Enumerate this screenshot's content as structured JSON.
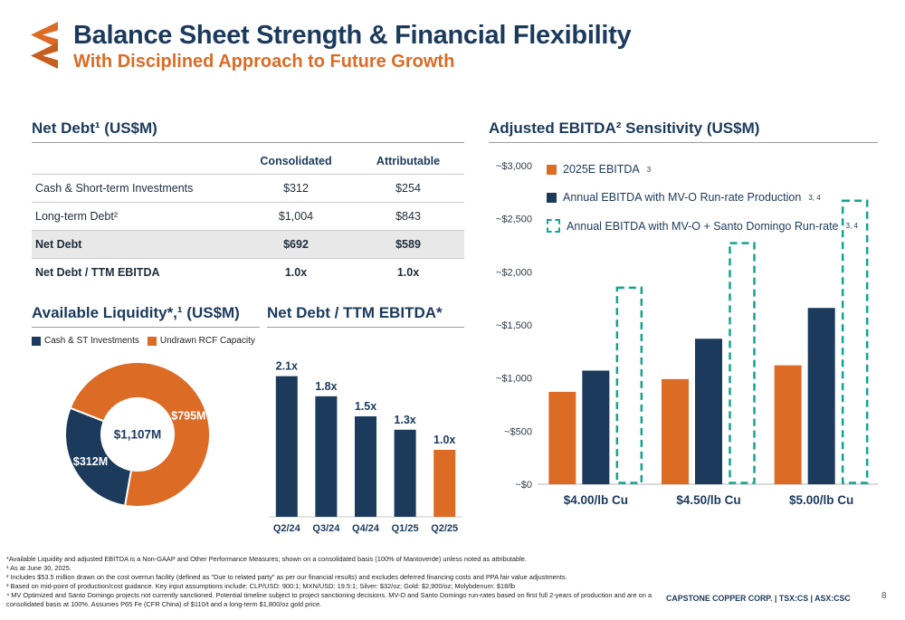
{
  "slide": {
    "title": "Balance Sheet Strength & Financial Flexibility",
    "subtitle": "With Disciplined Approach to Future Growth",
    "footer_company": "CAPSTONE COPPER CORP. | TSX:CS | ASX:CSC",
    "page_number": "8"
  },
  "colors": {
    "navy": "#1B3A5C",
    "orange": "#DC6B26",
    "teal": "#12A48E",
    "row_shade": "#E8E8E8"
  },
  "net_debt_table": {
    "title": "Net Debt¹ (US$M)",
    "columns": [
      "Consolidated",
      "Attributable"
    ],
    "rows": [
      {
        "label": "Cash & Short-term Investments",
        "consolidated": "$312",
        "attributable": "$254",
        "bold": false,
        "shaded": false
      },
      {
        "label": "Long-term Debt²",
        "consolidated": "$1,004",
        "attributable": "$843",
        "bold": false,
        "shaded": false
      },
      {
        "label": "Net Debt",
        "consolidated": "$692",
        "attributable": "$589",
        "bold": true,
        "shaded": true
      },
      {
        "label": "Net Debt / TTM EBITDA",
        "consolidated": "1.0x",
        "attributable": "1.0x",
        "bold": true,
        "shaded": false
      }
    ]
  },
  "liquidity": {
    "title": "Available Liquidity*,¹ (US$M)"
  },
  "ttm": {
    "title": "Net Debt / TTM EBITDA*"
  },
  "sensitivity": {
    "title": "Adjusted EBITDA² Sensitivity (US$M)",
    "legend": [
      {
        "label": "2025E EBITDA",
        "sup": "3"
      },
      {
        "label": "Annual EBITDA with MV-O Run-rate Production",
        "sup": "3, 4"
      },
      {
        "label": "Annual EBITDA with MV-O + Santo Domingo Run-rate",
        "sup": "3, 4"
      }
    ]
  },
  "chart_data": [
    {
      "type": "pie",
      "title": "Available Liquidity*,¹ (US$M)",
      "labels": [
        "Cash & ST Investments",
        "Undrawn RCF Capacity"
      ],
      "values": [
        312,
        795
      ],
      "slice_labels": [
        "$312M",
        "$795M"
      ],
      "center_label": "$1,107M",
      "colors": [
        "#1B3A5C",
        "#DC6B26"
      ],
      "donut": true,
      "legend_position": "top"
    },
    {
      "type": "bar",
      "title": "Net Debt / TTM EBITDA*",
      "categories": [
        "Q2/24",
        "Q3/24",
        "Q4/24",
        "Q1/25",
        "Q2/25"
      ],
      "values": [
        2.1,
        1.8,
        1.5,
        1.3,
        1.0
      ],
      "value_labels": [
        "2.1x",
        "1.8x",
        "1.5x",
        "1.3x",
        "1.0x"
      ],
      "bar_colors": [
        "#1B3A5C",
        "#1B3A5C",
        "#1B3A5C",
        "#1B3A5C",
        "#DC6B26"
      ],
      "ylim": [
        0,
        2.3
      ],
      "grid": false
    },
    {
      "type": "bar",
      "title": "Adjusted EBITDA² Sensitivity (US$M)",
      "categories": [
        "$4.00/lb Cu",
        "$4.50/lb Cu",
        "$5.00/lb Cu"
      ],
      "series": [
        {
          "name": "2025E EBITDA³",
          "style": "solid",
          "color": "#DC6B26",
          "values": [
            870,
            990,
            1120
          ]
        },
        {
          "name": "Annual EBITDA with MV-O Run-rate Production³,⁴",
          "style": "solid",
          "color": "#1B3A5C",
          "values": [
            1070,
            1370,
            1660
          ]
        },
        {
          "name": "Annual EBITDA with MV-O + Santo Domingo Run-rate³,⁴",
          "style": "dashed-outline",
          "color": "#12A48E",
          "values": [
            1850,
            2270,
            2670
          ]
        }
      ],
      "yticks": [
        "~$3,000",
        "~$2,500",
        "~$2,000",
        "~$1,500",
        "~$1,000",
        "~$500",
        "~$0"
      ],
      "ylim": [
        0,
        3000
      ],
      "grid": false,
      "legend_position": "top-left-inside"
    }
  ],
  "footnotes": [
    "*Available Liquidity and adjusted EBITDA is a Non-GAAP and Other Performance Measures; shown on a consolidated basis (100% of Mantoverde) unless noted as attributable.",
    "¹ As at June 30, 2025.",
    "² Includes $53.5 million  drawn on the cost overrun facility (defined as \"Due to related party\" as per our financial results) and excludes deferred financing costs and PPA fair value adjustments.",
    "³ Based on mid-point of production/cost guidance. Key input assumptions include: CLP/USD: 900:1; MXN/USD: 19.5:1; Silver: $32/oz; Gold: $2,900/oz; Molybdenum: $18/lb",
    "⁴ MV Optimized and Santo Domingo projects not currently sanctioned. Potential timeline subject to project sanctioning decisions. MV-O and Santo Domingo run-rates based on first full 2-years of production and are on a consolidated basis at 100%. Assumes P65 Fe (CFR China) of $110/t and a long-term $1,800/oz gold price."
  ]
}
